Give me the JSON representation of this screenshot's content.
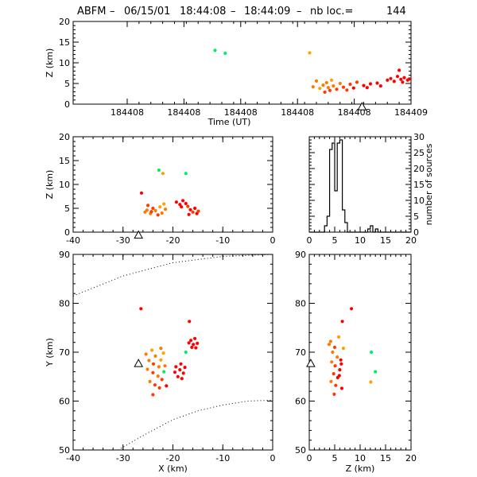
{
  "title": {
    "prefix": "ABFM",
    "dash1": "–",
    "date": "06/15/01",
    "t_start": "18:44:08",
    "dash2": "–",
    "t_end": "18:44:09",
    "dash3": "–",
    "count_label": "nb loc.=",
    "count": "144"
  },
  "colors": {
    "red": "#ff0000",
    "red_orange": "#ff3a00",
    "orange": "#ff7a00",
    "amber": "#ffa000",
    "green": "#00ee66",
    "axis": "#000000"
  },
  "chart_data": [
    {
      "id": "time_z",
      "type": "scatter",
      "xlabel": "Time (UT)",
      "ylabel": "Z (km)",
      "xticks": [
        "184408",
        "184408",
        "184408",
        "184408",
        "184408",
        "184409"
      ],
      "ylim": [
        0,
        20
      ],
      "yticks": [
        0,
        5,
        10,
        15,
        20
      ],
      "station_marker": "triangle",
      "points": [
        {
          "t": 0.42,
          "z": 13.0,
          "c": "green"
        },
        {
          "t": 0.45,
          "z": 12.3,
          "c": "green"
        },
        {
          "t": 0.7,
          "z": 12.4,
          "c": "amber"
        },
        {
          "t": 0.71,
          "z": 4.2,
          "c": "orange"
        },
        {
          "t": 0.72,
          "z": 5.6,
          "c": "orange"
        },
        {
          "t": 0.73,
          "z": 3.8,
          "c": "amber"
        },
        {
          "t": 0.74,
          "z": 4.6,
          "c": "orange"
        },
        {
          "t": 0.745,
          "z": 2.9,
          "c": "red_orange"
        },
        {
          "t": 0.75,
          "z": 5.2,
          "c": "orange"
        },
        {
          "t": 0.755,
          "z": 4.0,
          "c": "orange"
        },
        {
          "t": 0.76,
          "z": 3.3,
          "c": "red_orange"
        },
        {
          "t": 0.765,
          "z": 5.8,
          "c": "amber"
        },
        {
          "t": 0.77,
          "z": 4.4,
          "c": "orange"
        },
        {
          "t": 0.78,
          "z": 3.6,
          "c": "red_orange"
        },
        {
          "t": 0.79,
          "z": 5.0,
          "c": "orange"
        },
        {
          "t": 0.8,
          "z": 4.1,
          "c": "red_orange"
        },
        {
          "t": 0.81,
          "z": 3.4,
          "c": "red_orange"
        },
        {
          "t": 0.82,
          "z": 4.8,
          "c": "red_orange"
        },
        {
          "t": 0.83,
          "z": 3.9,
          "c": "red"
        },
        {
          "t": 0.84,
          "z": 5.3,
          "c": "red_orange"
        },
        {
          "t": 0.86,
          "z": 4.5,
          "c": "red"
        },
        {
          "t": 0.87,
          "z": 4.0,
          "c": "red"
        },
        {
          "t": 0.88,
          "z": 4.9,
          "c": "red"
        },
        {
          "t": 0.9,
          "z": 5.1,
          "c": "red"
        },
        {
          "t": 0.91,
          "z": 4.4,
          "c": "red"
        },
        {
          "t": 0.93,
          "z": 5.8,
          "c": "red"
        },
        {
          "t": 0.94,
          "z": 6.2,
          "c": "red"
        },
        {
          "t": 0.95,
          "z": 5.5,
          "c": "red"
        },
        {
          "t": 0.96,
          "z": 6.7,
          "c": "red"
        },
        {
          "t": 0.965,
          "z": 8.2,
          "c": "red"
        },
        {
          "t": 0.97,
          "z": 6.0,
          "c": "red"
        },
        {
          "t": 0.975,
          "z": 5.3,
          "c": "red"
        },
        {
          "t": 0.98,
          "z": 6.4,
          "c": "red"
        },
        {
          "t": 0.99,
          "z": 5.8,
          "c": "red"
        },
        {
          "t": 0.995,
          "z": 6.1,
          "c": "red"
        }
      ],
      "station": {
        "t": 0.855,
        "z": -0.6
      }
    },
    {
      "id": "x_z",
      "type": "scatter",
      "xlim": [
        -40,
        0
      ],
      "xticks": [
        -40,
        -30,
        -20,
        -10,
        0
      ],
      "ylabel": "Z (km)",
      "ylim": [
        0,
        20
      ],
      "yticks": [
        0,
        5,
        10,
        15,
        20
      ],
      "points": [
        {
          "x": -22.8,
          "z": 13.0,
          "c": "green"
        },
        {
          "x": -17.4,
          "z": 12.3,
          "c": "green"
        },
        {
          "x": -22.0,
          "z": 12.3,
          "c": "amber"
        },
        {
          "x": -26.3,
          "z": 8.2,
          "c": "red"
        },
        {
          "x": -25.6,
          "z": 4.2,
          "c": "orange"
        },
        {
          "x": -25.0,
          "z": 5.6,
          "c": "red_orange"
        },
        {
          "x": -24.5,
          "z": 3.9,
          "c": "orange"
        },
        {
          "x": -24.0,
          "z": 5.0,
          "c": "red_orange"
        },
        {
          "x": -23.5,
          "z": 4.5,
          "c": "orange"
        },
        {
          "x": -23.0,
          "z": 3.6,
          "c": "red_orange"
        },
        {
          "x": -22.6,
          "z": 5.3,
          "c": "amber"
        },
        {
          "x": -22.2,
          "z": 4.0,
          "c": "orange"
        },
        {
          "x": -21.8,
          "z": 5.9,
          "c": "amber"
        },
        {
          "x": -21.5,
          "z": 4.8,
          "c": "orange"
        },
        {
          "x": -25.2,
          "z": 4.6,
          "c": "orange"
        },
        {
          "x": -24.3,
          "z": 4.3,
          "c": "red_orange"
        },
        {
          "x": -19.3,
          "z": 6.3,
          "c": "red"
        },
        {
          "x": -18.6,
          "z": 5.8,
          "c": "red"
        },
        {
          "x": -18.0,
          "z": 6.6,
          "c": "red"
        },
        {
          "x": -17.4,
          "z": 6.0,
          "c": "red"
        },
        {
          "x": -17.0,
          "z": 5.4,
          "c": "red_orange"
        },
        {
          "x": -16.5,
          "z": 4.7,
          "c": "red"
        },
        {
          "x": -16.0,
          "z": 4.2,
          "c": "red_orange"
        },
        {
          "x": -15.6,
          "z": 5.0,
          "c": "red"
        },
        {
          "x": -15.2,
          "z": 3.9,
          "c": "red"
        },
        {
          "x": -14.9,
          "z": 4.4,
          "c": "red_orange"
        },
        {
          "x": -18.3,
          "z": 5.3,
          "c": "red"
        },
        {
          "x": -16.8,
          "z": 3.7,
          "c": "red"
        }
      ],
      "station": {
        "x": -26.9,
        "z": -0.6
      }
    },
    {
      "id": "z_histogram",
      "type": "bar",
      "xlim": [
        0,
        20
      ],
      "xticks": [
        0,
        5,
        10,
        15,
        20
      ],
      "ylabel": "number of sources",
      "ylim": [
        0,
        30
      ],
      "yticks": [
        0,
        5,
        10,
        15,
        20,
        25,
        30
      ],
      "bin_width": 0.5,
      "bins_start": [
        3.0,
        3.5,
        4.0,
        4.5,
        5.0,
        5.5,
        6.0,
        6.5,
        7.0,
        7.5,
        8.0,
        8.5,
        9.0,
        9.5,
        10.0,
        10.5,
        11.0,
        11.5,
        12.0,
        12.5,
        13.0,
        13.5
      ],
      "values": [
        2,
        5,
        26,
        28,
        13,
        28,
        29,
        7,
        3,
        0,
        0,
        0,
        0,
        0,
        0,
        0,
        0,
        1,
        2,
        0,
        1,
        0
      ]
    },
    {
      "id": "x_y",
      "type": "scatter",
      "xlabel": "X (km)",
      "ylabel": "Y (km)",
      "xlim": [
        -40,
        0
      ],
      "xticks": [
        -40,
        -30,
        -20,
        -10,
        0
      ],
      "ylim": [
        50,
        90
      ],
      "yticks": [
        50,
        60,
        70,
        80,
        90
      ],
      "points": [
        {
          "x": -26.4,
          "y": 78.9,
          "c": "red"
        },
        {
          "x": -16.7,
          "y": 76.3,
          "c": "red"
        },
        {
          "x": -17.4,
          "y": 70.0,
          "c": "green"
        },
        {
          "x": -21.8,
          "y": 66.0,
          "c": "green"
        },
        {
          "x": -24.2,
          "y": 70.4,
          "c": "amber"
        },
        {
          "x": -23.5,
          "y": 69.2,
          "c": "orange"
        },
        {
          "x": -22.4,
          "y": 70.8,
          "c": "orange"
        },
        {
          "x": -21.9,
          "y": 69.8,
          "c": "amber"
        },
        {
          "x": -24.8,
          "y": 68.3,
          "c": "orange"
        },
        {
          "x": -23.9,
          "y": 67.6,
          "c": "red_orange"
        },
        {
          "x": -22.8,
          "y": 67.0,
          "c": "orange"
        },
        {
          "x": -25.1,
          "y": 66.5,
          "c": "orange"
        },
        {
          "x": -24.0,
          "y": 65.8,
          "c": "red_orange"
        },
        {
          "x": -23.0,
          "y": 65.1,
          "c": "orange"
        },
        {
          "x": -22.2,
          "y": 64.4,
          "c": "red_orange"
        },
        {
          "x": -24.6,
          "y": 64.0,
          "c": "orange"
        },
        {
          "x": -23.6,
          "y": 63.3,
          "c": "red_orange"
        },
        {
          "x": -22.7,
          "y": 62.7,
          "c": "red_orange"
        },
        {
          "x": -21.3,
          "y": 63.1,
          "c": "red"
        },
        {
          "x": -24.0,
          "y": 61.3,
          "c": "red_orange"
        },
        {
          "x": -22.4,
          "y": 68.4,
          "c": "amber"
        },
        {
          "x": -21.6,
          "y": 67.2,
          "c": "orange"
        },
        {
          "x": -25.4,
          "y": 69.6,
          "c": "orange"
        },
        {
          "x": -19.4,
          "y": 67.0,
          "c": "red"
        },
        {
          "x": -18.6,
          "y": 66.4,
          "c": "red"
        },
        {
          "x": -17.9,
          "y": 65.7,
          "c": "red"
        },
        {
          "x": -19.0,
          "y": 65.0,
          "c": "red"
        },
        {
          "x": -18.2,
          "y": 64.6,
          "c": "red"
        },
        {
          "x": -17.6,
          "y": 66.9,
          "c": "red"
        },
        {
          "x": -19.6,
          "y": 65.9,
          "c": "red"
        },
        {
          "x": -18.4,
          "y": 67.6,
          "c": "red"
        },
        {
          "x": -16.4,
          "y": 72.4,
          "c": "red"
        },
        {
          "x": -15.9,
          "y": 71.6,
          "c": "red"
        },
        {
          "x": -15.4,
          "y": 70.9,
          "c": "red"
        },
        {
          "x": -16.2,
          "y": 71.0,
          "c": "red"
        },
        {
          "x": -15.6,
          "y": 72.8,
          "c": "red"
        },
        {
          "x": -16.8,
          "y": 71.9,
          "c": "red"
        },
        {
          "x": -15.1,
          "y": 71.8,
          "c": "red"
        }
      ],
      "station": {
        "x": -26.9,
        "y": 67.7
      },
      "range_rings": [
        {
          "x": [
            -40,
            -30,
            -20,
            -10,
            0
          ],
          "y": [
            81.5,
            85.6,
            88.3,
            89.6,
            90.0
          ]
        },
        {
          "x": [
            -31,
            -25,
            -20,
            -15,
            -10,
            -5,
            0
          ],
          "y": [
            50.0,
            53.5,
            56.2,
            58.0,
            59.2,
            60.0,
            60.2
          ]
        }
      ]
    },
    {
      "id": "z_y",
      "type": "scatter",
      "xlabel": "Z (km)",
      "xlim": [
        0,
        20
      ],
      "xticks": [
        0,
        5,
        10,
        15,
        20
      ],
      "ylim": [
        50,
        90
      ],
      "yticks": [
        50,
        60,
        70,
        80,
        90
      ],
      "points": [
        {
          "z": 8.3,
          "y": 78.9,
          "c": "red"
        },
        {
          "z": 6.5,
          "y": 76.3,
          "c": "red"
        },
        {
          "z": 12.2,
          "y": 70.0,
          "c": "green"
        },
        {
          "z": 13.0,
          "y": 66.0,
          "c": "green"
        },
        {
          "z": 12.1,
          "y": 63.9,
          "c": "amber"
        },
        {
          "z": 4.2,
          "y": 72.2,
          "c": "orange"
        },
        {
          "z": 5.0,
          "y": 71.0,
          "c": "red_orange"
        },
        {
          "z": 5.8,
          "y": 73.1,
          "c": "amber"
        },
        {
          "z": 4.6,
          "y": 70.0,
          "c": "orange"
        },
        {
          "z": 5.5,
          "y": 69.0,
          "c": "orange"
        },
        {
          "z": 6.2,
          "y": 68.4,
          "c": "red"
        },
        {
          "z": 4.4,
          "y": 68.0,
          "c": "orange"
        },
        {
          "z": 5.1,
          "y": 67.2,
          "c": "red_orange"
        },
        {
          "z": 6.0,
          "y": 66.4,
          "c": "red"
        },
        {
          "z": 4.8,
          "y": 65.6,
          "c": "red_orange"
        },
        {
          "z": 5.6,
          "y": 64.8,
          "c": "red"
        },
        {
          "z": 4.3,
          "y": 64.0,
          "c": "orange"
        },
        {
          "z": 5.2,
          "y": 63.2,
          "c": "red_orange"
        },
        {
          "z": 6.4,
          "y": 62.6,
          "c": "red"
        },
        {
          "z": 4.9,
          "y": 61.4,
          "c": "red_orange"
        },
        {
          "z": 6.7,
          "y": 70.8,
          "c": "amber"
        },
        {
          "z": 3.9,
          "y": 71.6,
          "c": "orange"
        },
        {
          "z": 5.9,
          "y": 65.2,
          "c": "red"
        },
        {
          "z": 6.3,
          "y": 67.6,
          "c": "red"
        }
      ],
      "station": {
        "z": 0.3,
        "y": 67.7
      }
    }
  ]
}
